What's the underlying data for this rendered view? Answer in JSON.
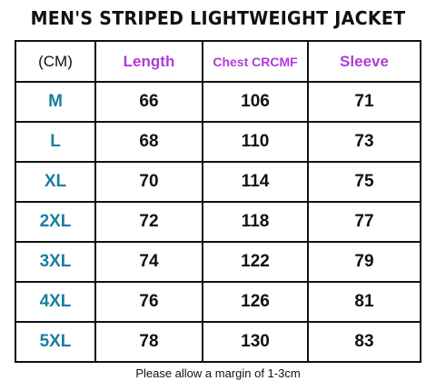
{
  "title": "MEN'S STRIPED LIGHTWEIGHT JACKET",
  "table": {
    "unit_label": "(CM)",
    "columns": [
      "Length",
      "Chest CRCMF",
      "Sleeve"
    ],
    "rows": [
      {
        "size": "M",
        "length": "66",
        "chest": "106",
        "sleeve": "71"
      },
      {
        "size": "L",
        "length": "68",
        "chest": "110",
        "sleeve": "73"
      },
      {
        "size": "XL",
        "length": "70",
        "chest": "114",
        "sleeve": "75"
      },
      {
        "size": "2XL",
        "length": "72",
        "chest": "118",
        "sleeve": "77"
      },
      {
        "size": "3XL",
        "length": "74",
        "chest": "122",
        "sleeve": "79"
      },
      {
        "size": "4XL",
        "length": "76",
        "chest": "126",
        "sleeve": "81"
      },
      {
        "size": "5XL",
        "length": "78",
        "chest": "130",
        "sleeve": "83"
      }
    ]
  },
  "footer": "Please allow a margin of 1-3cm",
  "colors": {
    "header_purple": "#b23bd6",
    "size_teal": "#1a7fa0",
    "border": "#111111"
  }
}
